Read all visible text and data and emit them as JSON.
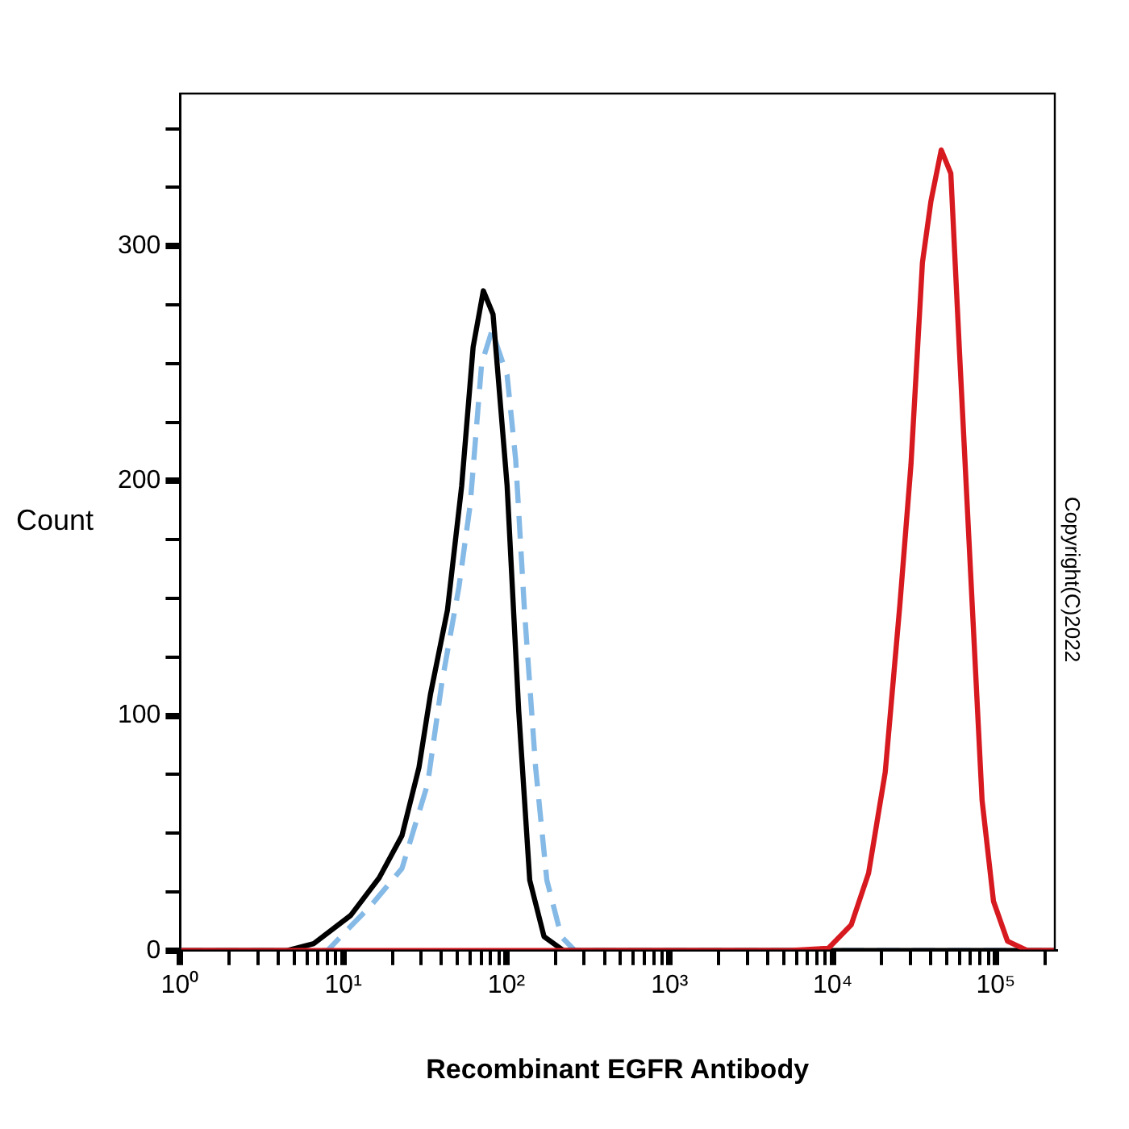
{
  "chart_data": {
    "type": "line",
    "xlabel": "Recombinant EGFR Antibody",
    "ylabel": "Count",
    "log": "x",
    "grid": false,
    "legend": false,
    "marker": "none",
    "xlim": [
      1,
      230000
    ],
    "ylim": [
      0,
      365
    ],
    "xticks": [
      {
        "value": 1,
        "label": "10⁰"
      },
      {
        "value": 2,
        "label": null
      },
      {
        "value": 3,
        "label": null
      },
      {
        "value": 4,
        "label": null
      },
      {
        "value": 5,
        "label": null
      },
      {
        "value": 6,
        "label": null
      },
      {
        "value": 7,
        "label": null
      },
      {
        "value": 8,
        "label": null
      },
      {
        "value": 9,
        "label": null
      },
      {
        "value": 10,
        "label": "10¹"
      },
      {
        "value": 20,
        "label": null
      },
      {
        "value": 30,
        "label": null
      },
      {
        "value": 40,
        "label": null
      },
      {
        "value": 50,
        "label": null
      },
      {
        "value": 60,
        "label": null
      },
      {
        "value": 70,
        "label": null
      },
      {
        "value": 80,
        "label": null
      },
      {
        "value": 90,
        "label": null
      },
      {
        "value": 100,
        "label": "10²"
      },
      {
        "value": 200,
        "label": null
      },
      {
        "value": 300,
        "label": null
      },
      {
        "value": 400,
        "label": null
      },
      {
        "value": 500,
        "label": null
      },
      {
        "value": 600,
        "label": null
      },
      {
        "value": 700,
        "label": null
      },
      {
        "value": 800,
        "label": null
      },
      {
        "value": 900,
        "label": null
      },
      {
        "value": 1000,
        "label": "10³"
      },
      {
        "value": 2000,
        "label": null
      },
      {
        "value": 3000,
        "label": null
      },
      {
        "value": 4000,
        "label": null
      },
      {
        "value": 5000,
        "label": null
      },
      {
        "value": 6000,
        "label": null
      },
      {
        "value": 7000,
        "label": null
      },
      {
        "value": 8000,
        "label": null
      },
      {
        "value": 9000,
        "label": null
      },
      {
        "value": 10000,
        "label": "10⁴"
      },
      {
        "value": 20000,
        "label": null
      },
      {
        "value": 30000,
        "label": null
      },
      {
        "value": 40000,
        "label": null
      },
      {
        "value": 50000,
        "label": null
      },
      {
        "value": 60000,
        "label": null
      },
      {
        "value": 70000,
        "label": null
      },
      {
        "value": 80000,
        "label": null
      },
      {
        "value": 90000,
        "label": null
      },
      {
        "value": 100000,
        "label": "10⁵"
      },
      {
        "value": 200000,
        "label": null
      }
    ],
    "yticks": [
      0,
      {
        "value": 25,
        "label": null
      },
      {
        "value": 50,
        "label": null
      },
      {
        "value": 75,
        "label": null
      },
      100,
      {
        "value": 125,
        "label": null
      },
      {
        "value": 150,
        "label": null
      },
      {
        "value": 175,
        "label": null
      },
      200,
      {
        "value": 225,
        "label": null
      },
      {
        "value": 250,
        "label": null
      },
      {
        "value": 275,
        "label": null
      },
      300,
      {
        "value": 325,
        "label": null
      },
      {
        "value": 350,
        "label": null
      }
    ],
    "series": [
      {
        "color": "#85b9e6",
        "line_style": "dashed",
        "x": [
          1,
          8,
          10.3,
          14.7,
          22.9,
          32.9,
          40.2,
          51.2,
          60,
          70.5,
          81.5,
          101,
          114,
          129,
          151,
          177,
          217,
          263,
          230000
        ],
        "values": [
          0,
          0,
          8,
          19,
          35,
          71,
          114,
          155,
          190,
          250,
          264,
          245,
          209,
          145,
          78,
          30,
          6,
          0,
          0
        ]
      },
      {
        "color": "#000000",
        "line_style": "solid",
        "x": [
          1,
          4.5,
          6.6,
          11.1,
          16.6,
          22.9,
          29.1,
          34.2,
          43.5,
          53.2,
          62.5,
          72.2,
          82.8,
          101,
          119,
          139,
          170,
          224,
          230000
        ],
        "values": [
          0,
          0,
          3,
          15,
          31,
          49,
          78,
          109,
          145,
          198,
          257,
          281,
          271,
          198,
          102,
          30,
          6,
          0,
          0
        ]
      },
      {
        "color": "#d71920",
        "line_style": "solid",
        "x": [
          1,
          5400,
          9400,
          13000,
          16600,
          21000,
          25800,
          30200,
          35500,
          40000,
          46300,
          53000,
          59900,
          70300,
          82400,
          96800,
          118000,
          157000,
          230000
        ],
        "values": [
          0,
          0,
          1,
          11,
          33,
          76,
          147,
          207,
          293,
          319,
          341,
          331,
          255,
          159,
          64,
          21,
          4,
          0,
          0
        ]
      }
    ],
    "annotations": [
      "Copyright(C)2022"
    ]
  }
}
